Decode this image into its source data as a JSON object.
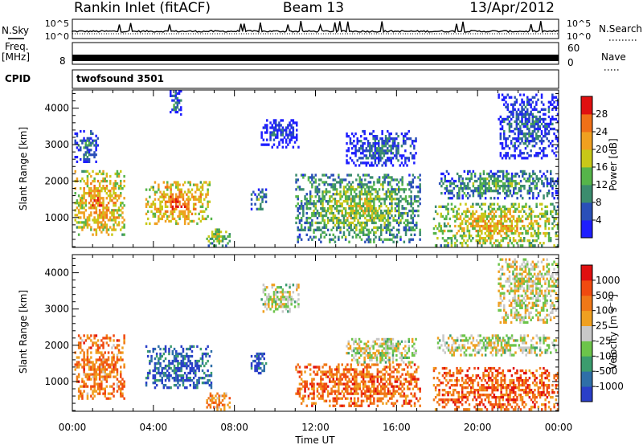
{
  "header": {
    "station": "Rankin Inlet (fitACF)",
    "beam": "Beam 13",
    "date": "13/Apr/2012"
  },
  "strips": {
    "nsky_label": "N.Sky",
    "nsky_ticks": [
      "10^5",
      "10^0"
    ],
    "nsearch_label": "N.Search",
    "freq_label": "Freq.",
    "freq_unit": "[MHz]",
    "freq_tick": "8",
    "nave_label": "Nave",
    "nave_ticks": [
      "60",
      "0"
    ],
    "cpid_label": "CPID",
    "cpid_value": "twofsound 3501"
  },
  "chart_data": [
    {
      "type": "heatmap",
      "name": "power",
      "ylabel": "Slant Range [km]",
      "yticks": [
        1000,
        2000,
        3000,
        4000
      ],
      "ylim": [
        180,
        4500
      ],
      "xlim": [
        0,
        24
      ],
      "xticks": [
        "00:00",
        "04:00",
        "08:00",
        "12:00",
        "16:00",
        "20:00",
        "00:00"
      ],
      "colorbar": {
        "label": "Power [dB]",
        "ticks": [
          "4",
          "8",
          "12",
          "16",
          "20",
          "24",
          "28"
        ],
        "colors": [
          "#1f1fff",
          "#2a4fb8",
          "#3b8c6e",
          "#56b54a",
          "#c8c818",
          "#f0a020",
          "#f07018",
          "#e01010"
        ]
      },
      "regions": [
        {
          "t0": 0.1,
          "t1": 2.6,
          "r0": 500,
          "r1": 2300,
          "level": 0.8
        },
        {
          "t0": 0.1,
          "t1": 1.3,
          "r0": 2500,
          "r1": 3400,
          "level": 0.35
        },
        {
          "t0": 3.6,
          "t1": 6.9,
          "r0": 800,
          "r1": 2000,
          "level": 0.8
        },
        {
          "t0": 4.8,
          "t1": 5.4,
          "r0": 3800,
          "r1": 4500,
          "level": 0.35
        },
        {
          "t0": 6.6,
          "t1": 7.8,
          "r0": 200,
          "r1": 700,
          "level": 0.6
        },
        {
          "t0": 8.8,
          "t1": 9.6,
          "r0": 1200,
          "r1": 1800,
          "level": 0.45
        },
        {
          "t0": 9.3,
          "t1": 11.2,
          "r0": 2900,
          "r1": 3700,
          "level": 0.2
        },
        {
          "t0": 11.0,
          "t1": 17.2,
          "r0": 300,
          "r1": 2200,
          "level": 0.55
        },
        {
          "t0": 13.5,
          "t1": 17.0,
          "r0": 2400,
          "r1": 3400,
          "level": 0.3
        },
        {
          "t0": 17.8,
          "t1": 24.0,
          "r0": 200,
          "r1": 1400,
          "level": 0.7
        },
        {
          "t0": 18.0,
          "t1": 24.0,
          "r0": 1500,
          "r1": 2300,
          "level": 0.45
        },
        {
          "t0": 21.0,
          "t1": 24.0,
          "r0": 2600,
          "r1": 4400,
          "level": 0.3
        }
      ]
    },
    {
      "type": "heatmap",
      "name": "velocity",
      "ylabel": "Slant Range [km]",
      "yticks": [
        1000,
        2000,
        3000,
        4000
      ],
      "ylim": [
        180,
        4500
      ],
      "xlim": [
        0,
        24
      ],
      "xticks": [
        "00:00",
        "04:00",
        "08:00",
        "12:00",
        "16:00",
        "20:00",
        "00:00"
      ],
      "xlabel": "Time UT",
      "colorbar": {
        "label": "Velocity [m s^-1]",
        "ticks": [
          "1000",
          "500",
          "100",
          "25",
          "-25",
          "-100",
          "-500",
          "-1000"
        ],
        "colors": [
          "#2a3fc8",
          "#2f6fa8",
          "#3b9c6e",
          "#6cc44a",
          "#c8c8c8",
          "#f0a020",
          "#f07818",
          "#f04a10",
          "#e01010"
        ]
      },
      "regions": [
        {
          "t0": 0.1,
          "t1": 2.6,
          "r0": 500,
          "r1": 2300,
          "level": 0.72
        },
        {
          "t0": 3.6,
          "t1": 6.9,
          "r0": 800,
          "r1": 2000,
          "level": 0.12
        },
        {
          "t0": 6.6,
          "t1": 7.8,
          "r0": 200,
          "r1": 700,
          "level": 0.7
        },
        {
          "t0": 8.8,
          "t1": 9.6,
          "r0": 1200,
          "r1": 1800,
          "level": 0.1
        },
        {
          "t0": 9.3,
          "t1": 11.2,
          "r0": 2900,
          "r1": 3700,
          "level": 0.48
        },
        {
          "t0": 11.0,
          "t1": 17.2,
          "r0": 300,
          "r1": 1500,
          "level": 0.75
        },
        {
          "t0": 13.5,
          "t1": 17.0,
          "r0": 1500,
          "r1": 2200,
          "level": 0.48
        },
        {
          "t0": 17.8,
          "t1": 24.0,
          "r0": 200,
          "r1": 1400,
          "level": 0.78
        },
        {
          "t0": 18.0,
          "t1": 24.0,
          "r0": 1700,
          "r1": 2300,
          "level": 0.48
        },
        {
          "t0": 21.0,
          "t1": 24.0,
          "r0": 2600,
          "r1": 4400,
          "level": 0.5
        }
      ]
    }
  ]
}
